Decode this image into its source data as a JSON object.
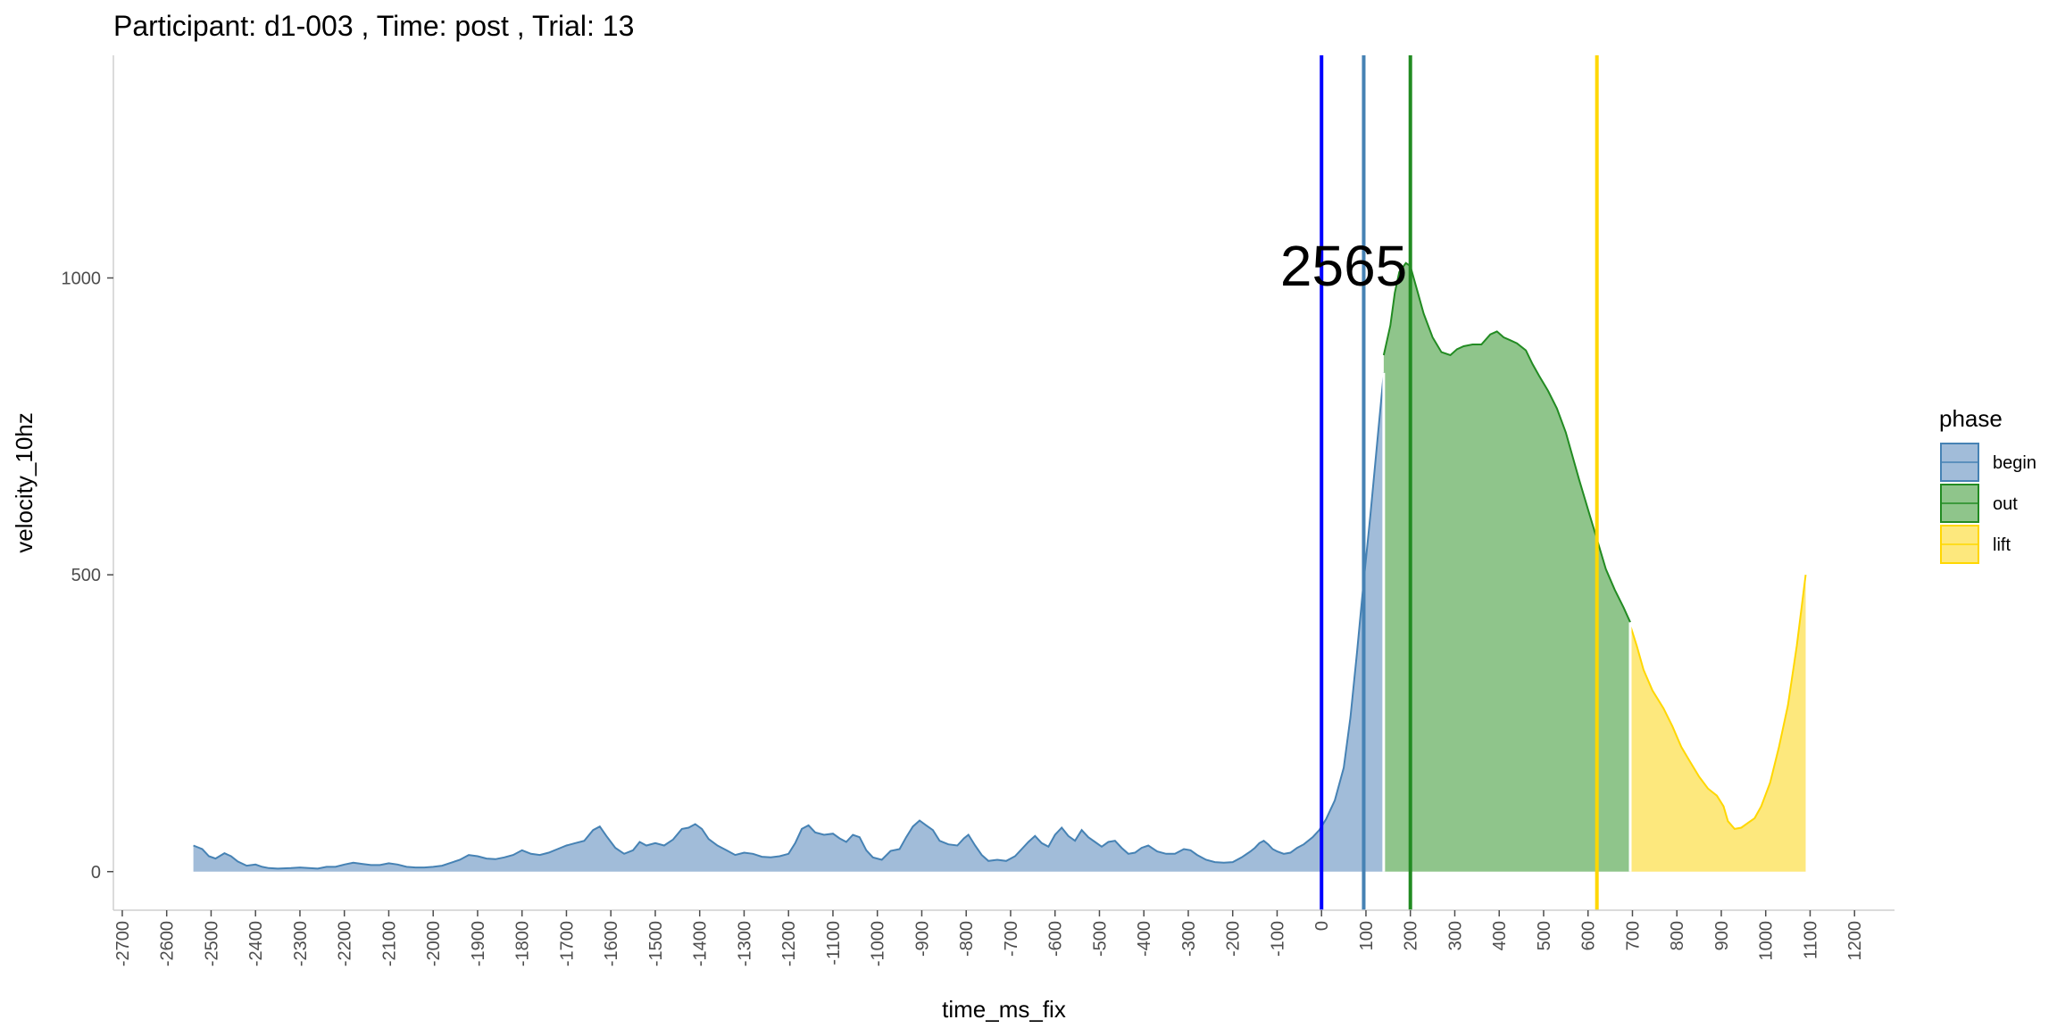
{
  "chart_data": {
    "type": "area",
    "title": "Participant:  d1-003 , Time: post , Trial:  13",
    "xlabel": "time_ms_fix",
    "ylabel": "velocity_10hz",
    "xlim": [
      -2720,
      1290
    ],
    "ylim": [
      -65,
      1375
    ],
    "x_ticks": [
      -2700,
      -2600,
      -2500,
      -2400,
      -2300,
      -2200,
      -2100,
      -2000,
      -1900,
      -1800,
      -1700,
      -1600,
      -1500,
      -1400,
      -1300,
      -1200,
      -1100,
      -1000,
      -900,
      -800,
      -700,
      -600,
      -500,
      -400,
      -300,
      -200,
      -100,
      0,
      100,
      200,
      300,
      400,
      500,
      600,
      700,
      800,
      900,
      1000,
      1100,
      1200
    ],
    "y_ticks": [
      0,
      500,
      1000
    ],
    "grid": false,
    "legend": {
      "title": "phase",
      "position": "right"
    },
    "annotation": {
      "text": "2565",
      "x": 50,
      "y": 1020
    },
    "vlines": [
      {
        "x": 0,
        "color": "#0000ff"
      },
      {
        "x": 95,
        "color": "#4682b4"
      },
      {
        "x": 200,
        "color": "#228b22"
      },
      {
        "x": 620,
        "color": "#ffd700"
      }
    ],
    "series": [
      {
        "name": "begin",
        "fill": "#a1bcd9",
        "stroke": "#4682b4",
        "points": [
          [
            -2540,
            44
          ],
          [
            -2520,
            38
          ],
          [
            -2505,
            26
          ],
          [
            -2490,
            22
          ],
          [
            -2470,
            31
          ],
          [
            -2455,
            26
          ],
          [
            -2440,
            17
          ],
          [
            -2420,
            10
          ],
          [
            -2400,
            12
          ],
          [
            -2385,
            8
          ],
          [
            -2370,
            6
          ],
          [
            -2350,
            5
          ],
          [
            -2320,
            6
          ],
          [
            -2300,
            7
          ],
          [
            -2280,
            6
          ],
          [
            -2260,
            5
          ],
          [
            -2240,
            8
          ],
          [
            -2220,
            8
          ],
          [
            -2200,
            12
          ],
          [
            -2180,
            15
          ],
          [
            -2160,
            13
          ],
          [
            -2140,
            11
          ],
          [
            -2120,
            11
          ],
          [
            -2100,
            14
          ],
          [
            -2080,
            12
          ],
          [
            -2060,
            8
          ],
          [
            -2040,
            7
          ],
          [
            -2020,
            7
          ],
          [
            -2000,
            8
          ],
          [
            -1980,
            10
          ],
          [
            -1960,
            15
          ],
          [
            -1940,
            20
          ],
          [
            -1920,
            28
          ],
          [
            -1900,
            26
          ],
          [
            -1880,
            22
          ],
          [
            -1860,
            21
          ],
          [
            -1840,
            24
          ],
          [
            -1820,
            28
          ],
          [
            -1800,
            36
          ],
          [
            -1780,
            30
          ],
          [
            -1760,
            28
          ],
          [
            -1740,
            32
          ],
          [
            -1720,
            38
          ],
          [
            -1700,
            44
          ],
          [
            -1680,
            48
          ],
          [
            -1660,
            52
          ],
          [
            -1640,
            70
          ],
          [
            -1625,
            76
          ],
          [
            -1610,
            60
          ],
          [
            -1590,
            40
          ],
          [
            -1570,
            30
          ],
          [
            -1550,
            36
          ],
          [
            -1535,
            50
          ],
          [
            -1520,
            44
          ],
          [
            -1500,
            48
          ],
          [
            -1480,
            44
          ],
          [
            -1460,
            54
          ],
          [
            -1440,
            72
          ],
          [
            -1425,
            74
          ],
          [
            -1410,
            80
          ],
          [
            -1395,
            72
          ],
          [
            -1380,
            55
          ],
          [
            -1360,
            44
          ],
          [
            -1340,
            36
          ],
          [
            -1320,
            28
          ],
          [
            -1300,
            32
          ],
          [
            -1280,
            30
          ],
          [
            -1260,
            25
          ],
          [
            -1240,
            24
          ],
          [
            -1220,
            26
          ],
          [
            -1200,
            30
          ],
          [
            -1185,
            48
          ],
          [
            -1170,
            72
          ],
          [
            -1155,
            78
          ],
          [
            -1140,
            66
          ],
          [
            -1120,
            62
          ],
          [
            -1100,
            64
          ],
          [
            -1085,
            56
          ],
          [
            -1070,
            50
          ],
          [
            -1055,
            62
          ],
          [
            -1040,
            58
          ],
          [
            -1025,
            36
          ],
          [
            -1010,
            24
          ],
          [
            -990,
            20
          ],
          [
            -970,
            35
          ],
          [
            -950,
            38
          ],
          [
            -935,
            58
          ],
          [
            -920,
            76
          ],
          [
            -905,
            86
          ],
          [
            -890,
            78
          ],
          [
            -875,
            70
          ],
          [
            -860,
            52
          ],
          [
            -840,
            46
          ],
          [
            -820,
            44
          ],
          [
            -805,
            56
          ],
          [
            -795,
            62
          ],
          [
            -780,
            44
          ],
          [
            -765,
            28
          ],
          [
            -750,
            18
          ],
          [
            -730,
            20
          ],
          [
            -710,
            18
          ],
          [
            -690,
            26
          ],
          [
            -675,
            38
          ],
          [
            -660,
            50
          ],
          [
            -645,
            60
          ],
          [
            -630,
            48
          ],
          [
            -615,
            42
          ],
          [
            -600,
            62
          ],
          [
            -585,
            74
          ],
          [
            -570,
            60
          ],
          [
            -555,
            52
          ],
          [
            -540,
            70
          ],
          [
            -525,
            58
          ],
          [
            -510,
            50
          ],
          [
            -495,
            42
          ],
          [
            -480,
            50
          ],
          [
            -465,
            52
          ],
          [
            -450,
            40
          ],
          [
            -435,
            30
          ],
          [
            -420,
            32
          ],
          [
            -405,
            40
          ],
          [
            -390,
            44
          ],
          [
            -370,
            34
          ],
          [
            -350,
            30
          ],
          [
            -330,
            30
          ],
          [
            -310,
            38
          ],
          [
            -295,
            36
          ],
          [
            -280,
            28
          ],
          [
            -260,
            20
          ],
          [
            -240,
            16
          ],
          [
            -220,
            15
          ],
          [
            -200,
            16
          ],
          [
            -180,
            24
          ],
          [
            -160,
            34
          ],
          [
            -150,
            40
          ],
          [
            -140,
            48
          ],
          [
            -130,
            52
          ],
          [
            -120,
            46
          ],
          [
            -110,
            38
          ],
          [
            -100,
            34
          ],
          [
            -85,
            30
          ],
          [
            -70,
            32
          ],
          [
            -55,
            40
          ],
          [
            -40,
            46
          ],
          [
            -20,
            58
          ],
          [
            -5,
            70
          ],
          [
            10,
            88
          ],
          [
            30,
            120
          ],
          [
            50,
            175
          ],
          [
            65,
            260
          ],
          [
            80,
            370
          ],
          [
            95,
            490
          ],
          [
            110,
            600
          ],
          [
            120,
            680
          ],
          [
            130,
            760
          ],
          [
            140,
            840
          ]
        ]
      },
      {
        "name": "out",
        "fill": "#8fc58b",
        "stroke": "#228b22",
        "points": [
          [
            140,
            870
          ],
          [
            155,
            920
          ],
          [
            165,
            975
          ],
          [
            175,
            1010
          ],
          [
            190,
            1025
          ],
          [
            200,
            1020
          ],
          [
            215,
            980
          ],
          [
            230,
            940
          ],
          [
            250,
            900
          ],
          [
            270,
            875
          ],
          [
            290,
            870
          ],
          [
            305,
            880
          ],
          [
            320,
            885
          ],
          [
            340,
            888
          ],
          [
            360,
            888
          ],
          [
            380,
            905
          ],
          [
            395,
            910
          ],
          [
            410,
            900
          ],
          [
            425,
            895
          ],
          [
            440,
            890
          ],
          [
            460,
            878
          ],
          [
            475,
            855
          ],
          [
            490,
            835
          ],
          [
            510,
            810
          ],
          [
            530,
            780
          ],
          [
            550,
            740
          ],
          [
            565,
            700
          ],
          [
            580,
            660
          ],
          [
            600,
            610
          ],
          [
            620,
            560
          ],
          [
            640,
            510
          ],
          [
            660,
            475
          ],
          [
            680,
            445
          ],
          [
            695,
            420
          ]
        ]
      },
      {
        "name": "lift",
        "fill": "#fde87d",
        "stroke": "#ffd700",
        "points": [
          [
            695,
            415
          ],
          [
            710,
            380
          ],
          [
            725,
            340
          ],
          [
            745,
            305
          ],
          [
            770,
            275
          ],
          [
            790,
            245
          ],
          [
            810,
            210
          ],
          [
            830,
            185
          ],
          [
            850,
            160
          ],
          [
            870,
            140
          ],
          [
            890,
            128
          ],
          [
            905,
            110
          ],
          [
            915,
            85
          ],
          [
            930,
            72
          ],
          [
            945,
            74
          ],
          [
            960,
            82
          ],
          [
            975,
            90
          ],
          [
            990,
            110
          ],
          [
            1010,
            150
          ],
          [
            1030,
            210
          ],
          [
            1050,
            280
          ],
          [
            1070,
            380
          ],
          [
            1090,
            500
          ]
        ]
      }
    ]
  }
}
